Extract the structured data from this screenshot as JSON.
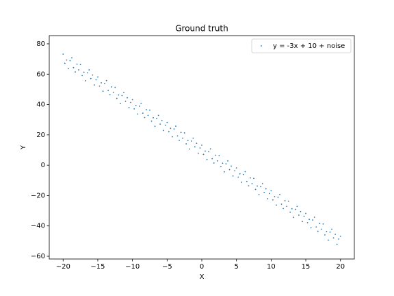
{
  "chart_data": {
    "type": "scatter",
    "title": "Ground truth",
    "x_label": "X",
    "y_label": "Y",
    "legend": "upper right",
    "xlim": [
      -22,
      22
    ],
    "ylim": [
      -61.8,
      85.4
    ],
    "xticks": [
      {
        "value": -20,
        "label": "−20"
      },
      {
        "value": -15,
        "label": "−15"
      },
      {
        "value": -10,
        "label": "−10"
      },
      {
        "value": -5,
        "label": "−5"
      },
      0,
      5,
      10,
      15,
      20
    ],
    "yticks": [
      {
        "value": -60,
        "label": "−60"
      },
      {
        "value": -40,
        "label": "−40"
      },
      {
        "value": -20,
        "label": "−20"
      },
      0,
      20,
      40,
      60,
      80
    ],
    "series": [
      {
        "name": "y = -3x + 10 + noise",
        "color": "#1f77b4",
        "x": [
          -20,
          -19.75,
          -19.5,
          -19.25,
          -19,
          -18.75,
          -18.5,
          -18.25,
          -18,
          -17.75,
          -17.5,
          -17.25,
          -17,
          -16.75,
          -16.5,
          -16.25,
          -16,
          -15.75,
          -15.5,
          -15.25,
          -15,
          -14.75,
          -14.5,
          -14.25,
          -14,
          -13.75,
          -13.5,
          -13.25,
          -13,
          -12.75,
          -12.5,
          -12.25,
          -12,
          -11.75,
          -11.5,
          -11.25,
          -11,
          -10.75,
          -10.5,
          -10.25,
          -10,
          -9.75,
          -9.5,
          -9.25,
          -9,
          -8.75,
          -8.5,
          -8.25,
          -8,
          -7.75,
          -7.5,
          -7.25,
          -7,
          -6.75,
          -6.5,
          -6.25,
          -6,
          -5.75,
          -5.5,
          -5.25,
          -5,
          -4.75,
          -4.5,
          -4.25,
          -4,
          -3.75,
          -3.5,
          -3.25,
          -3,
          -2.75,
          -2.5,
          -2.25,
          -2,
          -1.75,
          -1.5,
          -1.25,
          -1,
          -0.75,
          -0.5,
          -0.25,
          0,
          0.25,
          0.5,
          0.75,
          1,
          1.25,
          1.5,
          1.75,
          2,
          2.25,
          2.5,
          2.75,
          3,
          3.25,
          3.5,
          3.75,
          4,
          4.25,
          4.5,
          4.75,
          5,
          5.25,
          5.5,
          5.75,
          6,
          6.25,
          6.5,
          6.75,
          7,
          7.25,
          7.5,
          7.75,
          8,
          8.25,
          8.5,
          8.75,
          9,
          9.25,
          9.5,
          9.75,
          10,
          10.25,
          10.5,
          10.75,
          11,
          11.25,
          11.5,
          11.75,
          12,
          12.25,
          12.5,
          12.75,
          13,
          13.25,
          13.5,
          13.75,
          14,
          14.25,
          14.5,
          14.75,
          15,
          15.25,
          15.5,
          15.75,
          16,
          16.25,
          16.5,
          16.75,
          17,
          17.25,
          17.5,
          17.75,
          18,
          18.25,
          18.5,
          18.75,
          19,
          19.25,
          19.5,
          19.75,
          20
        ],
        "values": [
          73.2,
          67.15,
          69.3,
          63.75,
          68.9,
          70.75,
          64.3,
          61.45,
          66.6,
          62.85,
          66.3,
          59.05,
          61.3,
          55.65,
          60.9,
          62.85,
          57.1,
          59.45,
          52.9,
          56.35,
          58.2,
          52.15,
          54.3,
          48.75,
          53.9,
          55.75,
          49.3,
          46.45,
          51.6,
          47.85,
          51.3,
          44.05,
          46.3,
          40.65,
          45.9,
          47.85,
          42.1,
          44.45,
          37.9,
          41.35,
          43.2,
          37.15,
          39.3,
          33.75,
          38.9,
          40.75,
          34.3,
          31.45,
          36.6,
          32.85,
          36.3,
          29.05,
          31.3,
          25.65,
          30.9,
          32.85,
          27.1,
          29.45,
          22.9,
          26.35,
          28.2,
          22.15,
          24.3,
          18.75,
          23.9,
          25.75,
          19.3,
          16.45,
          21.6,
          17.85,
          21.3,
          14.05,
          16.3,
          10.65,
          15.9,
          17.85,
          12.1,
          14.45,
          7.9,
          11.35,
          13.2,
          7.15,
          9.3,
          3.75,
          8.9,
          10.75,
          4.3,
          1.45,
          6.6,
          2.85,
          6.3,
          -0.95,
          1.3,
          -4.35,
          0.9,
          2.85,
          -2.9,
          -0.55,
          -7.1,
          -3.65,
          -1.8,
          -7.85,
          -5.7,
          -11.25,
          -6.1,
          -4.25,
          -10.7,
          -13.55,
          -8.4,
          -12.15,
          -8.7,
          -15.95,
          -13.7,
          -19.35,
          -14.1,
          -12.15,
          -17.9,
          -15.55,
          -22.1,
          -18.65,
          -16.8,
          -22.85,
          -20.7,
          -26.25,
          -21.1,
          -19.25,
          -25.7,
          -28.55,
          -23.4,
          -27.15,
          -23.7,
          -30.95,
          -28.7,
          -34.35,
          -29.1,
          -27.15,
          -32.9,
          -30.55,
          -37.1,
          -33.65,
          -31.8,
          -37.85,
          -35.7,
          -41.25,
          -36.1,
          -34.25,
          -40.7,
          -43.55,
          -38.4,
          -42.15,
          -38.7,
          -45.95,
          -43.7,
          -49.35,
          -44.1,
          -42.15,
          -47.9,
          -45.55,
          -52.1,
          -48.65,
          -46.8
        ]
      }
    ]
  }
}
